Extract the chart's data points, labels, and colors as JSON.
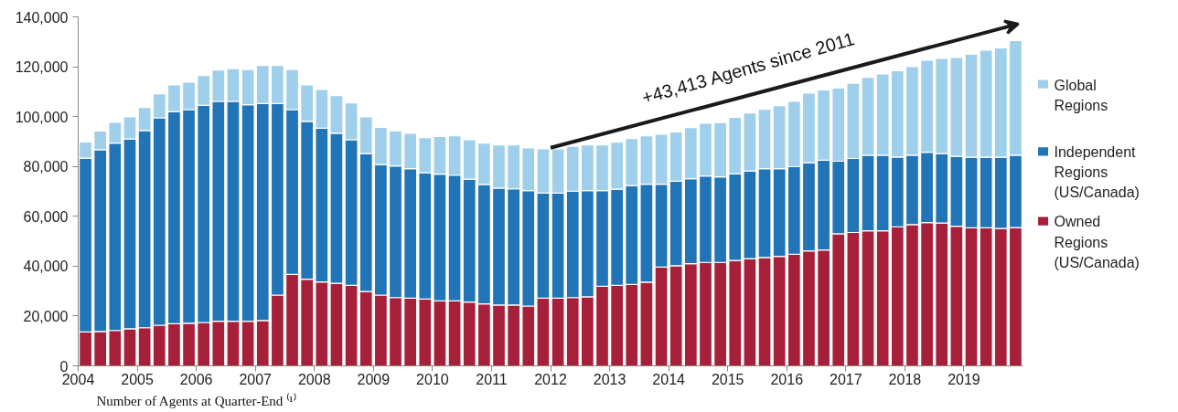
{
  "chart_data": {
    "type": "bar",
    "stacked": true,
    "x": [
      2004.125,
      2004.375,
      2004.625,
      2004.875,
      2005.125,
      2005.375,
      2005.625,
      2005.875,
      2006.125,
      2006.375,
      2006.625,
      2006.875,
      2007.125,
      2007.375,
      2007.625,
      2007.875,
      2008.125,
      2008.375,
      2008.625,
      2008.875,
      2009.125,
      2009.375,
      2009.625,
      2009.875,
      2010.125,
      2010.375,
      2010.625,
      2010.875,
      2011.125,
      2011.375,
      2011.625,
      2011.875,
      2012.125,
      2012.375,
      2012.625,
      2012.875,
      2013.125,
      2013.375,
      2013.625,
      2013.875,
      2014.125,
      2014.375,
      2014.625,
      2014.875,
      2015.125,
      2015.375,
      2015.625,
      2015.875,
      2016.125,
      2016.375,
      2016.625,
      2016.875,
      2017.125,
      2017.375,
      2017.625,
      2017.875,
      2018.125,
      2018.375,
      2018.625,
      2018.875,
      2019.125,
      2019.375,
      2019.625,
      2019.875
    ],
    "series": [
      {
        "name": "Owned Regions (US/Canada)",
        "color": "#a7203a",
        "values": [
          13600,
          13800,
          14200,
          14900,
          15300,
          16300,
          16900,
          17100,
          17400,
          17900,
          17900,
          17900,
          18200,
          28400,
          36700,
          34800,
          33700,
          33100,
          32300,
          29800,
          28400,
          27400,
          27200,
          26800,
          26100,
          26100,
          25600,
          24900,
          24400,
          24400,
          24000,
          27200,
          27200,
          27400,
          27700,
          31900,
          32300,
          32700,
          33600,
          39600,
          40200,
          41000,
          41500,
          41500,
          42300,
          43000,
          43500,
          43900,
          44800,
          46100,
          46500,
          53000,
          53500,
          54200,
          54200,
          55800,
          56700,
          57500,
          57300,
          56000,
          55400,
          55400,
          55100,
          55500
        ]
      },
      {
        "name": "Independent Regions (US/Canada)",
        "color": "#2174b5",
        "values": [
          69700,
          72900,
          75200,
          76100,
          79100,
          83200,
          85100,
          85700,
          87100,
          88200,
          88200,
          86900,
          87000,
          76800,
          66100,
          63300,
          61600,
          60200,
          58400,
          55400,
          52400,
          52800,
          51900,
          50700,
          50800,
          50400,
          49300,
          47900,
          46900,
          46600,
          46300,
          42100,
          42100,
          42700,
          42600,
          38400,
          38600,
          39600,
          39300,
          33300,
          33900,
          34100,
          34700,
          34300,
          34700,
          35200,
          35600,
          35200,
          35100,
          35400,
          36000,
          29100,
          29700,
          30300,
          30300,
          28000,
          27800,
          28200,
          27900,
          28100,
          28300,
          28300,
          28600,
          29000
        ]
      },
      {
        "name": "Global Regions",
        "color": "#9fcfeb",
        "values": [
          6500,
          7500,
          8300,
          8900,
          9300,
          9700,
          10700,
          11000,
          12000,
          12600,
          13100,
          14100,
          15300,
          15300,
          16100,
          14600,
          15600,
          15100,
          14800,
          14700,
          14900,
          14100,
          14200,
          14100,
          15100,
          15800,
          15800,
          16600,
          17300,
          17600,
          17100,
          17800,
          17800,
          18000,
          18300,
          18300,
          18800,
          18900,
          19400,
          20000,
          19800,
          20500,
          21100,
          21800,
          22700,
          23300,
          23800,
          25300,
          26200,
          27900,
          28200,
          29400,
          30200,
          31300,
          32600,
          34600,
          35600,
          36900,
          38200,
          39600,
          41300,
          43000,
          43900,
          46000
        ]
      }
    ],
    "xlim": [
      2004,
      2020
    ],
    "xticks": [
      2004,
      2005,
      2006,
      2007,
      2008,
      2009,
      2010,
      2011,
      2012,
      2013,
      2014,
      2015,
      2016,
      2017,
      2018,
      2019
    ],
    "ylim": [
      0,
      140000
    ],
    "yticks": [
      {
        "value": 0,
        "label": "0"
      },
      {
        "value": 20000,
        "label": "20,000"
      },
      {
        "value": 40000,
        "label": "40,000"
      },
      {
        "value": 60000,
        "label": "60,000"
      },
      {
        "value": 80000,
        "label": "80,000"
      },
      {
        "value": 100000,
        "label": "100,000"
      },
      {
        "value": 120000,
        "label": "120,000"
      },
      {
        "value": 140000,
        "label": "140,000"
      }
    ],
    "grid": false,
    "legend": "right",
    "annotations": [
      "+43,413 Agents since 2011",
      "Number of Agents at Quarter-End ⁽¹⁾"
    ]
  }
}
